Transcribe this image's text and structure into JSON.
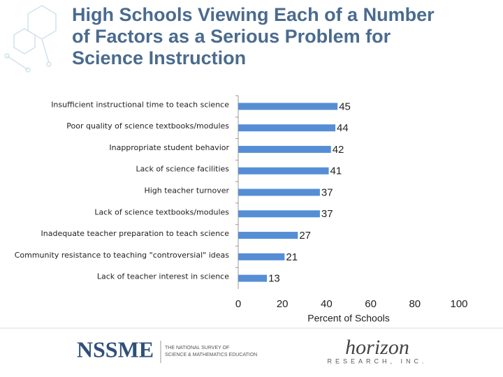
{
  "chart_data": {
    "type": "hbar",
    "title": "High Schools Viewing Each of a Number of Factors as a Serious Problem for Science Instruction",
    "categories": [
      "Insufficient instructional time to teach science",
      "Poor quality of science textbooks/modules",
      "Inappropriate student behavior",
      "Lack of science facilities",
      "High teacher turnover",
      "Lack of science textbooks/modules",
      "Inadequate teacher preparation to teach science",
      "Community resistance to teaching \"controversial\" ideas",
      "Lack of teacher interest in science"
    ],
    "values": [
      45,
      44,
      42,
      41,
      37,
      37,
      27,
      21,
      13
    ],
    "color": "#558ed5",
    "xlim": [
      0,
      100
    ],
    "xticks": [
      0,
      20,
      40,
      60,
      80,
      100
    ],
    "xlabel": "Percent of Schools",
    "grid": false
  },
  "footer": {
    "logo": "NSSME",
    "logo_text": [
      "THE NATIONAL SURVEY OF",
      "SCIENCE & MATHEMATICS EDUCATION"
    ],
    "partner": "horizon",
    "partner_text": "RESEARCH, INC."
  }
}
